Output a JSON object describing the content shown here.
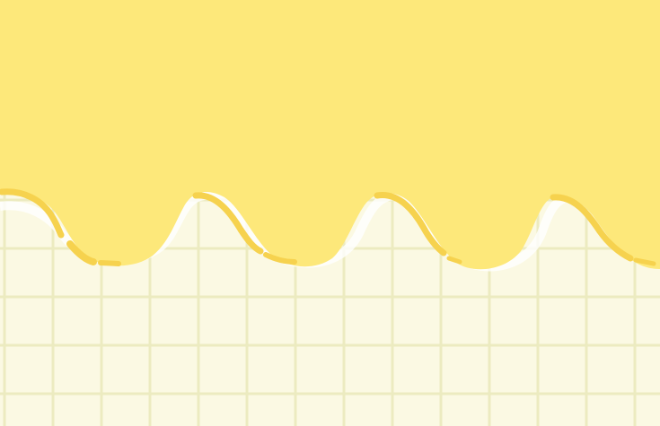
{
  "palette": {
    "background": "#fbf9e3",
    "grid_line": "#ecebc0",
    "drip": "#fde87a",
    "accent_stroke": "#f6d24e",
    "edge_highlight": "#ffffff"
  },
  "elements": {
    "background": "grid-paper-background",
    "drip": "yellow-drip-wave",
    "accents": "drip-accent-strokes"
  }
}
